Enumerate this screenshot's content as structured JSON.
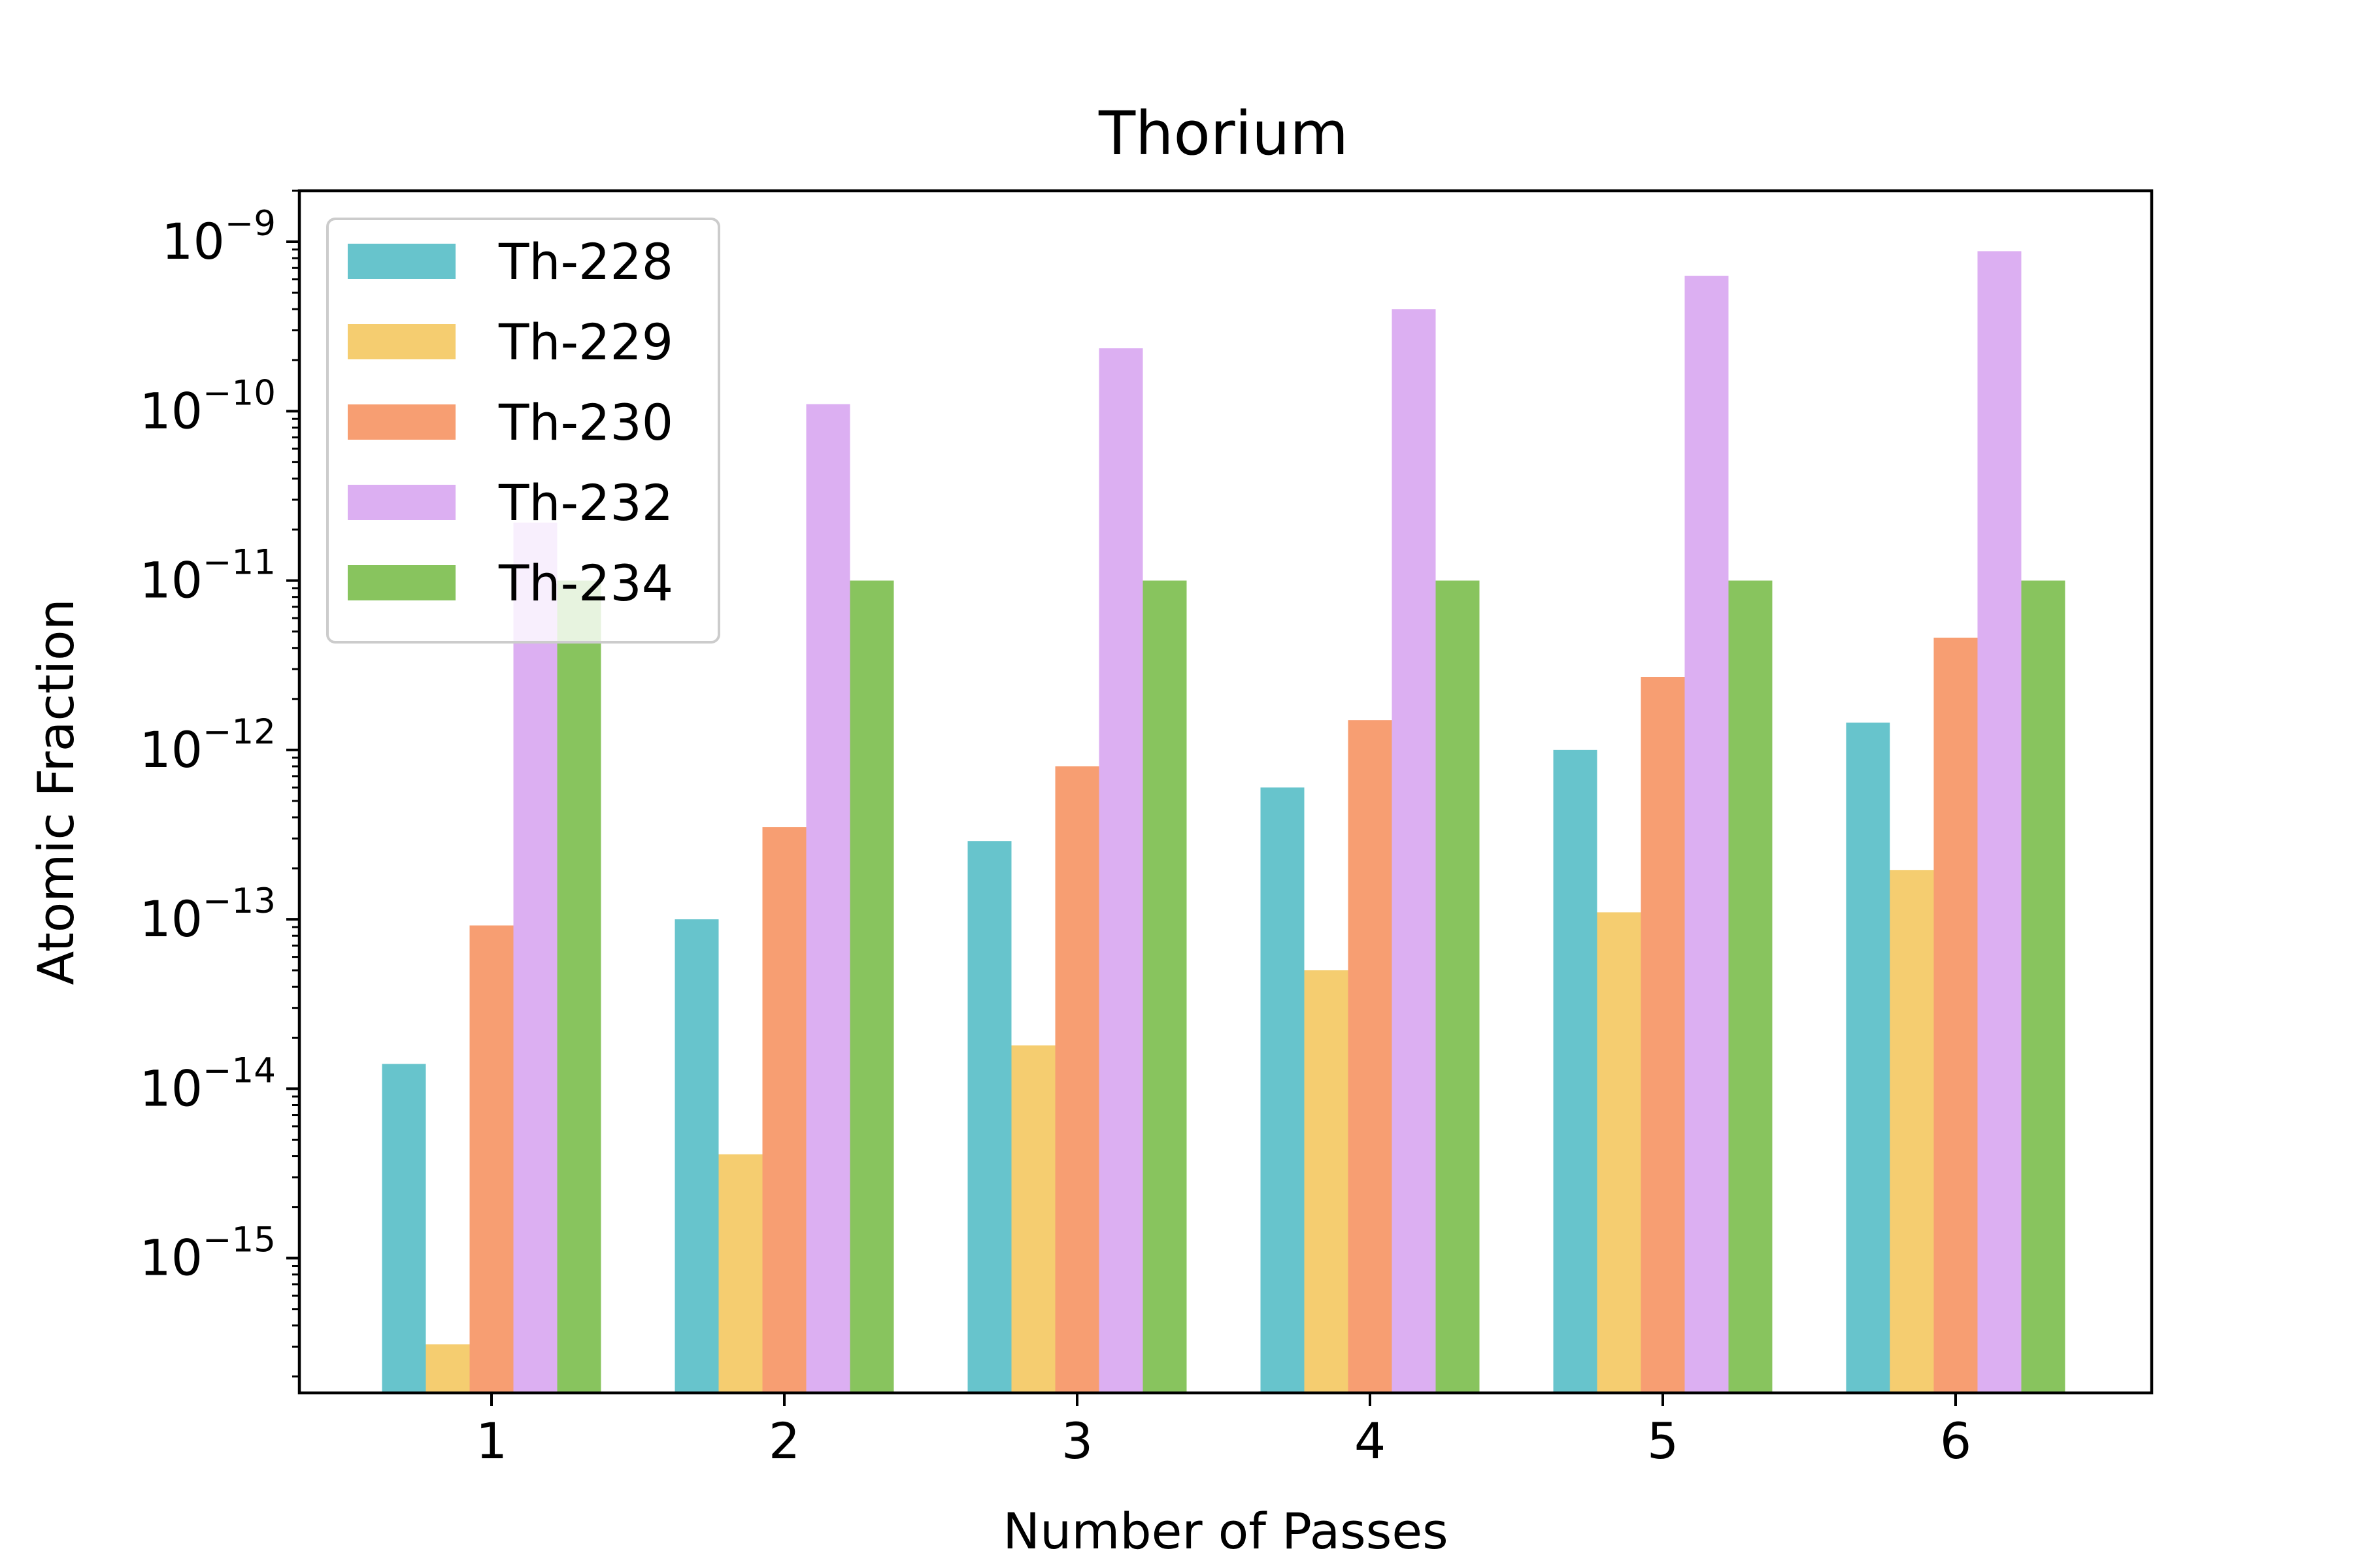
{
  "chart_data": {
    "type": "bar",
    "title": "Thorium",
    "xlabel": "Number of Passes",
    "ylabel": "Atomic Fraction",
    "yscale": "log",
    "ylim": [
      1.6e-16,
      2e-09
    ],
    "y_ticks": [
      {
        "value": 1e-15,
        "base": "10",
        "exp": "−15"
      },
      {
        "value": 1e-14,
        "base": "10",
        "exp": "−14"
      },
      {
        "value": 1e-13,
        "base": "10",
        "exp": "−13"
      },
      {
        "value": 1e-12,
        "base": "10",
        "exp": "−12"
      },
      {
        "value": 1e-11,
        "base": "10",
        "exp": "−11"
      },
      {
        "value": 1e-10,
        "base": "10",
        "exp": "−10"
      },
      {
        "value": 1e-09,
        "base": "10",
        "exp": "−9"
      }
    ],
    "categories": [
      "1",
      "2",
      "3",
      "4",
      "5",
      "6"
    ],
    "grid": false,
    "legend_position": "top-left",
    "series": [
      {
        "name": "Th-228",
        "color": "#67c4cc",
        "values": [
          1.4e-14,
          1e-13,
          2.9e-13,
          6e-13,
          1e-12,
          1.45e-12
        ]
      },
      {
        "name": "Th-229",
        "color": "#f5cd70",
        "values": [
          3.1e-16,
          4.1e-15,
          1.8e-14,
          5e-14,
          1.1e-13,
          1.95e-13
        ]
      },
      {
        "name": "Th-230",
        "color": "#f79e72",
        "values": [
          9.2e-14,
          3.5e-13,
          8e-13,
          1.5e-12,
          2.7e-12,
          4.6e-12
        ]
      },
      {
        "name": "Th-232",
        "color": "#dcaff2",
        "values": [
          2.2e-11,
          1.1e-10,
          2.35e-10,
          4e-10,
          6.3e-10,
          8.8e-10
        ]
      },
      {
        "name": "Th-234",
        "color": "#88c45e",
        "values": [
          1e-11,
          1e-11,
          1e-11,
          1e-11,
          1e-11,
          1e-11
        ]
      }
    ]
  }
}
